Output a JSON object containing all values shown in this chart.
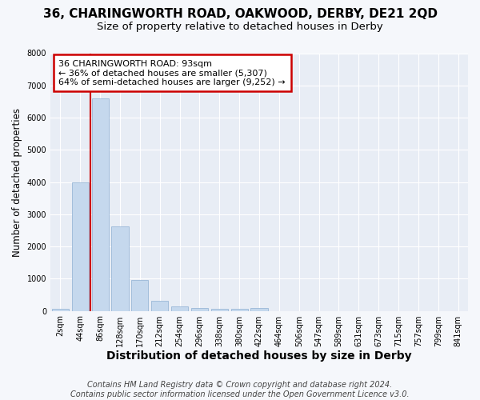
{
  "title": "36, CHARINGWORTH ROAD, OAKWOOD, DERBY, DE21 2QD",
  "subtitle": "Size of property relative to detached houses in Derby",
  "xlabel": "Distribution of detached houses by size in Derby",
  "ylabel": "Number of detached properties",
  "footnote": "Contains HM Land Registry data © Crown copyright and database right 2024.\nContains public sector information licensed under the Open Government Licence v3.0.",
  "bar_labels": [
    "2sqm",
    "44sqm",
    "86sqm",
    "128sqm",
    "170sqm",
    "212sqm",
    "254sqm",
    "296sqm",
    "338sqm",
    "380sqm",
    "422sqm",
    "464sqm",
    "506sqm",
    "547sqm",
    "589sqm",
    "631sqm",
    "673sqm",
    "715sqm",
    "757sqm",
    "799sqm",
    "841sqm"
  ],
  "bar_values": [
    60,
    4000,
    6600,
    2620,
    960,
    320,
    130,
    90,
    65,
    55,
    100,
    0,
    0,
    0,
    0,
    0,
    0,
    0,
    0,
    0,
    0
  ],
  "bar_color": "#c5d8ed",
  "bar_edge_color": "#9ab8d8",
  "property_vline_x": 1.5,
  "vline_color": "#cc0000",
  "annotation_text": "36 CHARINGWORTH ROAD: 93sqm\n← 36% of detached houses are smaller (5,307)\n64% of semi-detached houses are larger (9,252) →",
  "annotation_box_facecolor": "#ffffff",
  "annotation_box_edgecolor": "#cc0000",
  "ylim": [
    0,
    8000
  ],
  "yticks": [
    0,
    1000,
    2000,
    3000,
    4000,
    5000,
    6000,
    7000,
    8000
  ],
  "background_color": "#f5f7fb",
  "plot_bg_color": "#e8edf5",
  "grid_color": "#ffffff",
  "title_fontsize": 11,
  "subtitle_fontsize": 9.5,
  "xlabel_fontsize": 10,
  "ylabel_fontsize": 8.5,
  "tick_fontsize": 7,
  "ann_fontsize": 8,
  "footnote_fontsize": 7
}
